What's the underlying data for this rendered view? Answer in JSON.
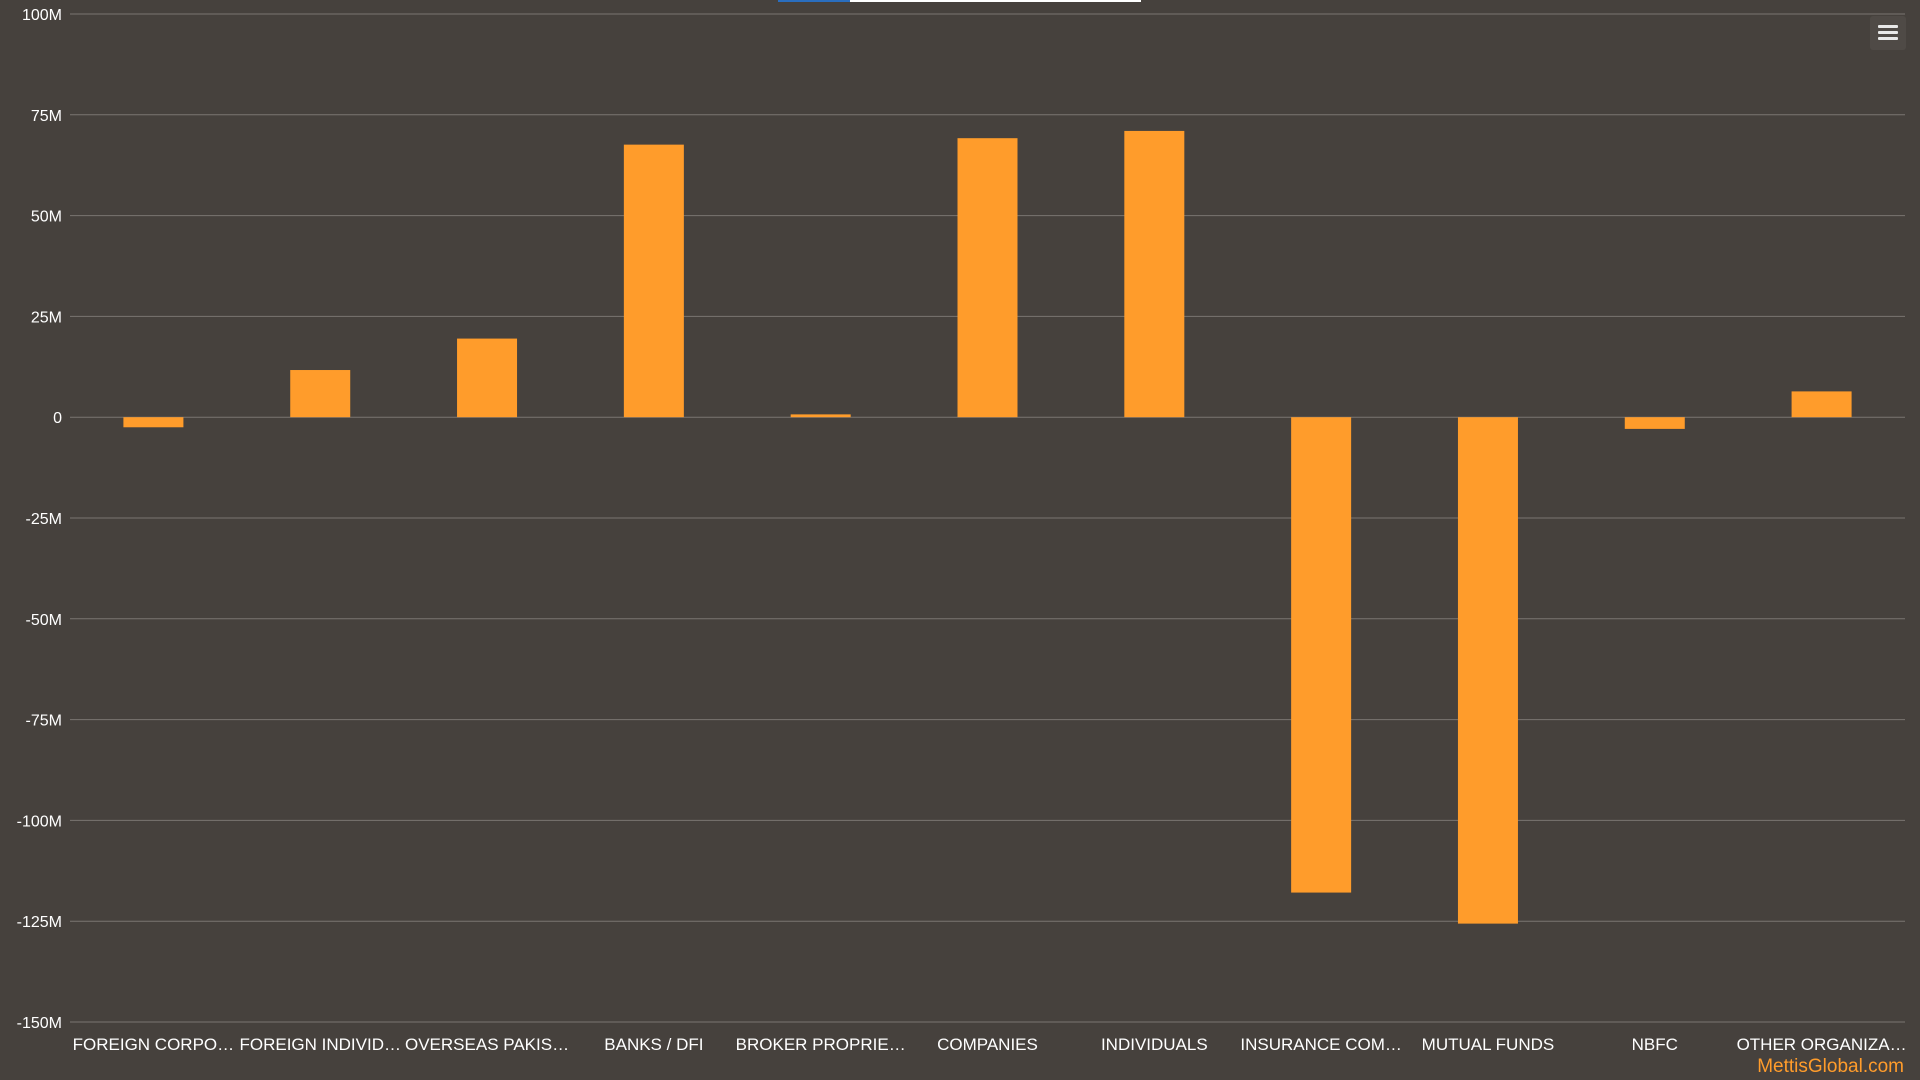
{
  "chart_data": {
    "type": "bar",
    "title": "",
    "xlabel": "",
    "ylabel": "",
    "categories": [
      "FOREIGN CORPO…",
      "FOREIGN INDIVID…",
      "OVERSEAS PAKIS…",
      "BANKS / DFI",
      "BROKER PROPRIE…",
      "COMPANIES",
      "INDIVIDUALS",
      "INSURANCE COM…",
      "MUTUAL FUNDS",
      "NBFC",
      "OTHER ORGANIZA…"
    ],
    "values": [
      -2500000,
      11700000,
      19500000,
      67600000,
      700000,
      69200000,
      71000000,
      -117900000,
      -125600000,
      -2900000,
      6400000
    ],
    "ylim": [
      -150000000,
      100000000
    ],
    "yticks": [
      100000000,
      75000000,
      50000000,
      25000000,
      0,
      -25000000,
      -50000000,
      -75000000,
      -100000000,
      -125000000,
      -150000000
    ],
    "ytick_labels": [
      "100M",
      "75M",
      "50M",
      "25M",
      "0",
      "-25M",
      "-50M",
      "-75M",
      "-100M",
      "-125M",
      "-150M"
    ],
    "grid": true,
    "legend": "none",
    "bar_color": "#ff9c2b",
    "background_color": "#46413d",
    "grid_color": "#7a7571"
  },
  "credit": "MettisGlobal.com",
  "menu": {
    "icon": "hamburger-menu-icon"
  }
}
